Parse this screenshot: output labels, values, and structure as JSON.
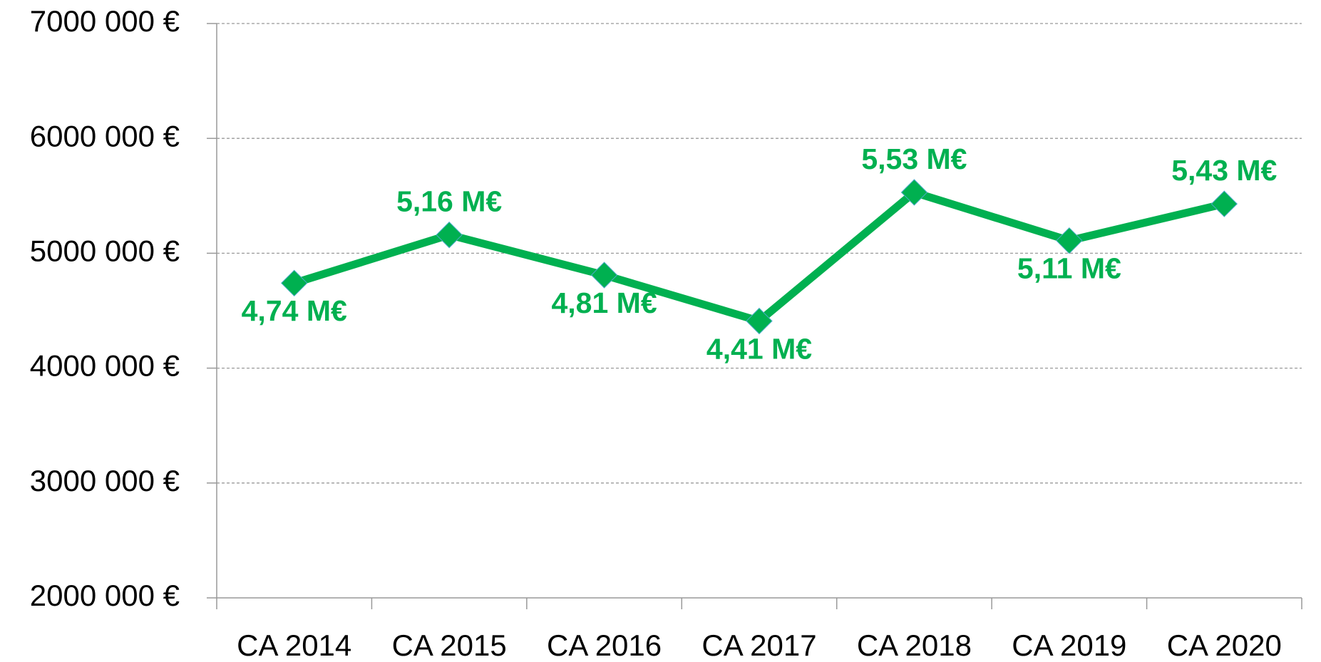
{
  "chart_data": {
    "type": "line",
    "categories": [
      "CA 2014",
      "CA 2015",
      "CA 2016",
      "CA 2017",
      "CA 2018",
      "CA 2019",
      "CA 2020"
    ],
    "series": [
      {
        "color": "#00b050",
        "values": [
          4740000,
          5160000,
          4810000,
          4410000,
          5530000,
          5110000,
          5430000
        ],
        "value_labels": [
          "4,74 M€",
          "5,16 M€",
          "4,81 M€",
          "4,41 M€",
          "5,53 M€",
          "5,11 M€",
          "5,43 M€"
        ]
      }
    ],
    "ylim": [
      2000000,
      7000000
    ],
    "yticks": [
      {
        "value": 2000000,
        "label": "2000 000 €"
      },
      {
        "value": 3000000,
        "label": "3000 000 €"
      },
      {
        "value": 4000000,
        "label": "4000 000 €"
      },
      {
        "value": 5000000,
        "label": "5000 000 €"
      },
      {
        "value": 6000000,
        "label": "6000 000 €"
      },
      {
        "value": 7000000,
        "label": "7000 000 €"
      }
    ],
    "grid": true
  }
}
